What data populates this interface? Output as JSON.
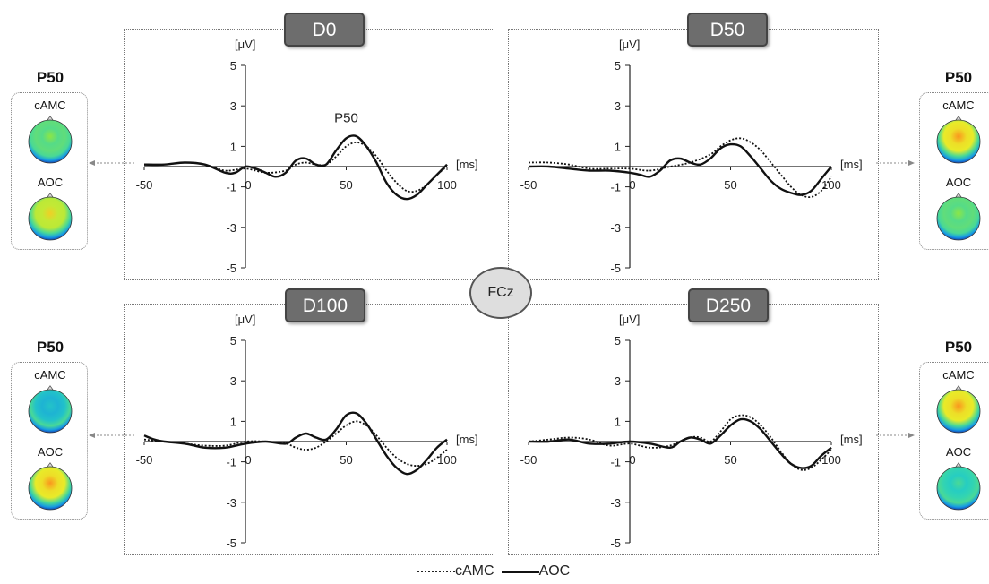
{
  "electrode": "FCz",
  "axis": {
    "y_unit": "[μV]",
    "x_unit": "[ms]",
    "y_ticks": [
      "5",
      "3",
      "1",
      "-1",
      "-3",
      "-5"
    ],
    "x_ticks": [
      "-50",
      "0",
      "50",
      "100"
    ]
  },
  "legend": {
    "dotted": "cAMC",
    "solid": "AOC"
  },
  "topomaps": {
    "title": "P50",
    "labels": [
      "cAMC",
      "AOC"
    ],
    "items": [
      {
        "position": "top-left",
        "levels": [
          0.55,
          0.75
        ]
      },
      {
        "position": "top-right",
        "levels": [
          0.85,
          0.55
        ]
      },
      {
        "position": "bottom-left",
        "levels": [
          0.35,
          0.85
        ]
      },
      {
        "position": "bottom-right",
        "levels": [
          0.85,
          0.45
        ]
      }
    ]
  },
  "chart_data": [
    {
      "type": "line",
      "title": "D0",
      "annotation": "P50",
      "xlabel": "[ms]",
      "ylabel": "[μV]",
      "xlim": [
        -50,
        100
      ],
      "ylim": [
        -5,
        5
      ],
      "series": [
        {
          "name": "cAMC",
          "style": "dotted",
          "x": [
            -50,
            -40,
            -30,
            -20,
            -10,
            0,
            10,
            20,
            25,
            30,
            35,
            40,
            45,
            50,
            55,
            60,
            65,
            70,
            75,
            80,
            85,
            90,
            95,
            100
          ],
          "y": [
            0.1,
            0.1,
            0.2,
            0.1,
            -0.2,
            -0.1,
            -0.3,
            -0.2,
            0.1,
            0.2,
            0.1,
            0.1,
            0.5,
            1.0,
            1.2,
            1.0,
            0.5,
            -0.2,
            -0.8,
            -1.2,
            -1.2,
            -0.9,
            -0.4,
            0.0
          ]
        },
        {
          "name": "AOC",
          "style": "solid",
          "x": [
            -50,
            -40,
            -30,
            -20,
            -10,
            -5,
            0,
            5,
            10,
            15,
            20,
            25,
            30,
            35,
            40,
            45,
            50,
            55,
            60,
            65,
            70,
            75,
            80,
            85,
            90,
            95,
            100
          ],
          "y": [
            0.1,
            0.1,
            0.2,
            0.1,
            -0.3,
            -0.3,
            0.0,
            -0.1,
            -0.3,
            -0.5,
            -0.3,
            0.3,
            0.4,
            0.1,
            0.1,
            0.8,
            1.4,
            1.5,
            1.0,
            0.2,
            -0.8,
            -1.4,
            -1.6,
            -1.4,
            -0.9,
            -0.4,
            0.1
          ]
        }
      ]
    },
    {
      "type": "line",
      "title": "D50",
      "xlabel": "[ms]",
      "ylabel": "[μV]",
      "xlim": [
        -50,
        100
      ],
      "ylim": [
        -5,
        5
      ],
      "series": [
        {
          "name": "cAMC",
          "style": "dotted",
          "x": [
            -50,
            -40,
            -30,
            -20,
            -10,
            0,
            10,
            20,
            30,
            40,
            45,
            50,
            55,
            60,
            65,
            70,
            75,
            80,
            85,
            90,
            95,
            100
          ],
          "y": [
            0.2,
            0.2,
            0.1,
            -0.1,
            -0.1,
            -0.1,
            -0.2,
            0.0,
            0.2,
            0.6,
            1.0,
            1.3,
            1.4,
            1.2,
            0.8,
            0.2,
            -0.4,
            -1.0,
            -1.4,
            -1.5,
            -1.2,
            -0.5
          ]
        },
        {
          "name": "AOC",
          "style": "solid",
          "x": [
            -50,
            -40,
            -30,
            -20,
            -10,
            0,
            5,
            10,
            15,
            20,
            25,
            30,
            35,
            40,
            45,
            50,
            55,
            60,
            65,
            70,
            75,
            80,
            85,
            90,
            95,
            100
          ],
          "y": [
            0.0,
            0.0,
            -0.1,
            -0.2,
            -0.2,
            -0.3,
            -0.4,
            -0.5,
            -0.2,
            0.3,
            0.4,
            0.2,
            0.1,
            0.4,
            0.9,
            1.1,
            1.0,
            0.5,
            -0.1,
            -0.7,
            -1.1,
            -1.3,
            -1.4,
            -1.2,
            -0.6,
            0.0
          ]
        }
      ]
    },
    {
      "type": "line",
      "title": "D100",
      "xlabel": "[ms]",
      "ylabel": "[μV]",
      "xlim": [
        -50,
        100
      ],
      "ylim": [
        -5,
        5
      ],
      "series": [
        {
          "name": "cAMC",
          "style": "dotted",
          "x": [
            -50,
            -40,
            -30,
            -20,
            -10,
            0,
            10,
            20,
            25,
            30,
            35,
            40,
            45,
            50,
            55,
            60,
            65,
            70,
            75,
            80,
            85,
            90,
            95,
            100
          ],
          "y": [
            0.1,
            0.0,
            -0.1,
            -0.2,
            -0.2,
            0.0,
            0.0,
            -0.1,
            -0.3,
            -0.4,
            -0.3,
            0.0,
            0.4,
            0.8,
            1.0,
            0.8,
            0.3,
            -0.3,
            -0.8,
            -1.1,
            -1.2,
            -1.1,
            -0.8,
            -0.4
          ]
        },
        {
          "name": "AOC",
          "style": "solid",
          "x": [
            -50,
            -45,
            -40,
            -30,
            -20,
            -10,
            0,
            10,
            20,
            25,
            30,
            35,
            40,
            45,
            50,
            55,
            60,
            65,
            70,
            75,
            80,
            85,
            90,
            95,
            100
          ],
          "y": [
            0.3,
            0.1,
            0.0,
            -0.1,
            -0.3,
            -0.3,
            -0.1,
            0.0,
            -0.1,
            0.2,
            0.4,
            0.2,
            0.1,
            0.6,
            1.3,
            1.4,
            0.9,
            0.1,
            -0.7,
            -1.3,
            -1.6,
            -1.4,
            -0.9,
            -0.3,
            0.1
          ]
        }
      ]
    },
    {
      "type": "line",
      "title": "D250",
      "xlabel": "[ms]",
      "ylabel": "[μV]",
      "xlim": [
        -50,
        100
      ],
      "ylim": [
        -5,
        5
      ],
      "series": [
        {
          "name": "cAMC",
          "style": "dotted",
          "x": [
            -50,
            -40,
            -30,
            -20,
            -10,
            0,
            10,
            20,
            30,
            35,
            40,
            45,
            50,
            55,
            60,
            65,
            70,
            75,
            80,
            85,
            90,
            95,
            100
          ],
          "y": [
            0.0,
            0.1,
            0.2,
            0.1,
            -0.2,
            -0.1,
            -0.3,
            -0.2,
            0.2,
            0.2,
            0.0,
            0.5,
            1.1,
            1.3,
            1.2,
            0.8,
            0.2,
            -0.5,
            -1.1,
            -1.4,
            -1.3,
            -0.9,
            -0.4
          ]
        },
        {
          "name": "AOC",
          "style": "solid",
          "x": [
            -50,
            -40,
            -30,
            -20,
            -10,
            0,
            10,
            20,
            25,
            30,
            35,
            40,
            45,
            50,
            55,
            60,
            65,
            70,
            75,
            80,
            85,
            90,
            95,
            100
          ],
          "y": [
            0.0,
            0.0,
            0.1,
            -0.1,
            -0.1,
            0.0,
            -0.1,
            -0.3,
            0.0,
            0.2,
            0.1,
            -0.1,
            0.3,
            0.8,
            1.1,
            1.0,
            0.6,
            0.0,
            -0.6,
            -1.1,
            -1.3,
            -1.2,
            -0.7,
            -0.3
          ]
        }
      ]
    }
  ]
}
